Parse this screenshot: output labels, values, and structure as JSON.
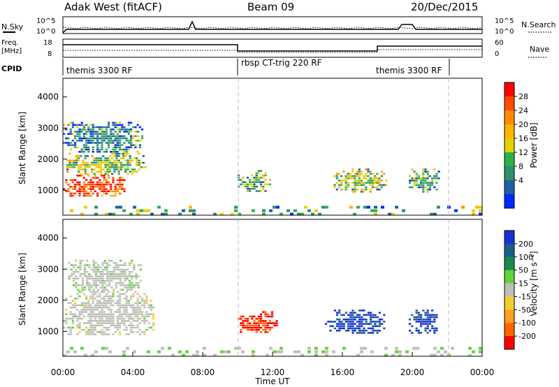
{
  "header": {
    "station": "Adak West (fitACF)",
    "beam": "Beam 09",
    "date": "20/Dec/2015"
  },
  "sky_panel": {
    "left_label": "N.Sky",
    "right_label": "N.Search",
    "y_ticks": [
      "10^5",
      "10^0"
    ]
  },
  "freq_panel": {
    "left_label_line1": "Freq.",
    "left_label_line2": "[MHz]",
    "left_ticks": [
      "18",
      "8"
    ],
    "right_ticks": [
      "60",
      "0"
    ],
    "right_label": "Nave"
  },
  "cpid": {
    "label": "CPID",
    "segments": [
      "themis 3300 RF",
      "rbsp CT-trig 220 RF",
      "themis 3300 RF"
    ]
  },
  "x_axis": {
    "ticks": [
      "00:00",
      "04:00",
      "08:00",
      "12:00",
      "16:00",
      "20:00",
      "00:00"
    ],
    "label": "Time UT"
  },
  "power_colorbar": {
    "title": "Power [dB]",
    "ticks": [
      "28",
      "24",
      "20",
      "16",
      "12",
      "8",
      "4"
    ],
    "colors": [
      "#ff0000",
      "#ff4a00",
      "#ff8c00",
      "#ffb400",
      "#e6d000",
      "#2db04b",
      "#2e8f6b",
      "#1f5fa0",
      "#0028ff"
    ]
  },
  "velocity_colorbar": {
    "title": "Velocity [m s⁻¹]",
    "ticks": [
      "200",
      "100",
      "50",
      "15",
      "-15",
      "-50",
      "-100",
      "-200"
    ],
    "colors": [
      "#1a2fd6",
      "#1a5f8c",
      "#1c8a4e",
      "#5fd43c",
      "#bfbfb8",
      "#f2cf2a",
      "#ffa020",
      "#ff6600",
      "#ff0000"
    ]
  },
  "chart_data": [
    {
      "type": "heatmap",
      "title": "Power",
      "ylabel": "Slant Range [km]",
      "xlabel": "Time UT",
      "y_ticks": [
        1000,
        2000,
        3000,
        4000
      ],
      "ylim": [
        200,
        4600
      ],
      "xlim": [
        0,
        24
      ],
      "value_range_db": [
        0,
        30
      ],
      "regions": [
        {
          "t0": 0.0,
          "t1": 3.6,
          "r0": 800,
          "r1": 1500,
          "level": 28
        },
        {
          "t0": 0.2,
          "t1": 4.8,
          "r0": 1500,
          "r1": 2200,
          "level": 14
        },
        {
          "t0": 0.0,
          "t1": 4.5,
          "r0": 2200,
          "r1": 3200,
          "level": 8
        },
        {
          "t0": 10.0,
          "t1": 11.8,
          "r0": 950,
          "r1": 1650,
          "level": 12
        },
        {
          "t0": 15.5,
          "t1": 18.5,
          "r0": 950,
          "r1": 1700,
          "level": 14
        },
        {
          "t0": 19.8,
          "t1": 21.5,
          "r0": 950,
          "r1": 1700,
          "level": 10
        },
        {
          "t0": 0.0,
          "t1": 24.0,
          "r0": 250,
          "r1": 500,
          "level": 10
        }
      ]
    },
    {
      "type": "heatmap",
      "title": "Velocity",
      "ylabel": "Slant Range [km]",
      "xlabel": "Time UT",
      "y_ticks": [
        1000,
        2000,
        3000,
        4000
      ],
      "ylim": [
        200,
        4600
      ],
      "xlim": [
        0,
        24
      ],
      "value_range_ms": [
        -250,
        250
      ],
      "regions": [
        {
          "t0": 0.0,
          "t1": 5.2,
          "r0": 900,
          "r1": 2300,
          "level": 0
        },
        {
          "t0": 0.3,
          "t1": 4.5,
          "r0": 2300,
          "r1": 3300,
          "level": 10
        },
        {
          "t0": 10.0,
          "t1": 12.3,
          "r0": 950,
          "r1": 1650,
          "level": -200
        },
        {
          "t0": 15.0,
          "t1": 18.4,
          "r0": 950,
          "r1": 1700,
          "level": 200
        },
        {
          "t0": 19.8,
          "t1": 21.5,
          "r0": 950,
          "r1": 1700,
          "level": 200
        },
        {
          "t0": 0.0,
          "t1": 24.0,
          "r0": 250,
          "r1": 500,
          "level": 20
        }
      ]
    }
  ]
}
